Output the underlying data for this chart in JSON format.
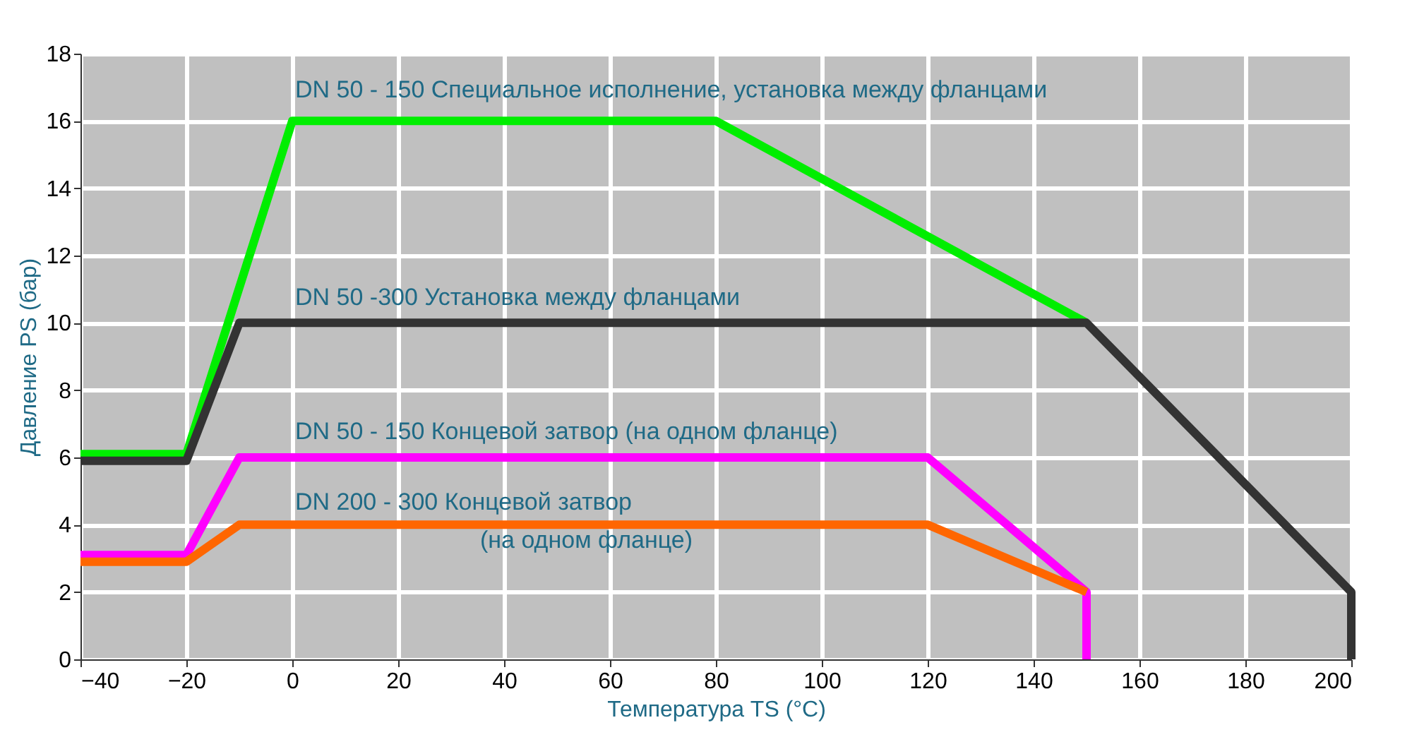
{
  "chart_data": {
    "type": "line",
    "xlabel": "Температура TS (°C)",
    "ylabel": "Давление PS (бар)",
    "xlim": [
      -40,
      200
    ],
    "xticks": [
      -40,
      -20,
      0,
      20,
      40,
      60,
      80,
      100,
      120,
      140,
      160,
      180,
      200
    ],
    "ylim": [
      0,
      18
    ],
    "yticks": [
      0,
      2,
      4,
      6,
      8,
      10,
      12,
      14,
      16,
      18
    ],
    "grid": true,
    "series": [
      {
        "color": "#00ee00",
        "x": [
          -40,
          -20,
          0,
          80,
          150
        ],
        "values": [
          6.1,
          6.1,
          16,
          16,
          10
        ]
      },
      {
        "color": "#333333",
        "x": [
          -40,
          -20,
          -10,
          150,
          200,
          200
        ],
        "values": [
          5.9,
          5.9,
          10,
          10,
          2,
          0
        ]
      },
      {
        "color": "#ff00ff",
        "x": [
          -40,
          -20,
          -10,
          120,
          150,
          150
        ],
        "values": [
          3.1,
          3.1,
          6,
          6,
          2,
          0
        ]
      },
      {
        "color": "#ff6600",
        "x": [
          -40,
          -20,
          -10,
          120,
          150
        ],
        "values": [
          2.9,
          2.9,
          4,
          4,
          2
        ]
      }
    ],
    "annotations": [
      "DN 50 - 150 Специальное исполнение, установка между фланцами",
      "DN 50 -300 Установка между фланцами",
      "DN 50 - 150 Концевой затвор (на одном фланце)",
      "DN 200 - 300 Концевой затвор",
      "(на одном фланце)"
    ]
  }
}
